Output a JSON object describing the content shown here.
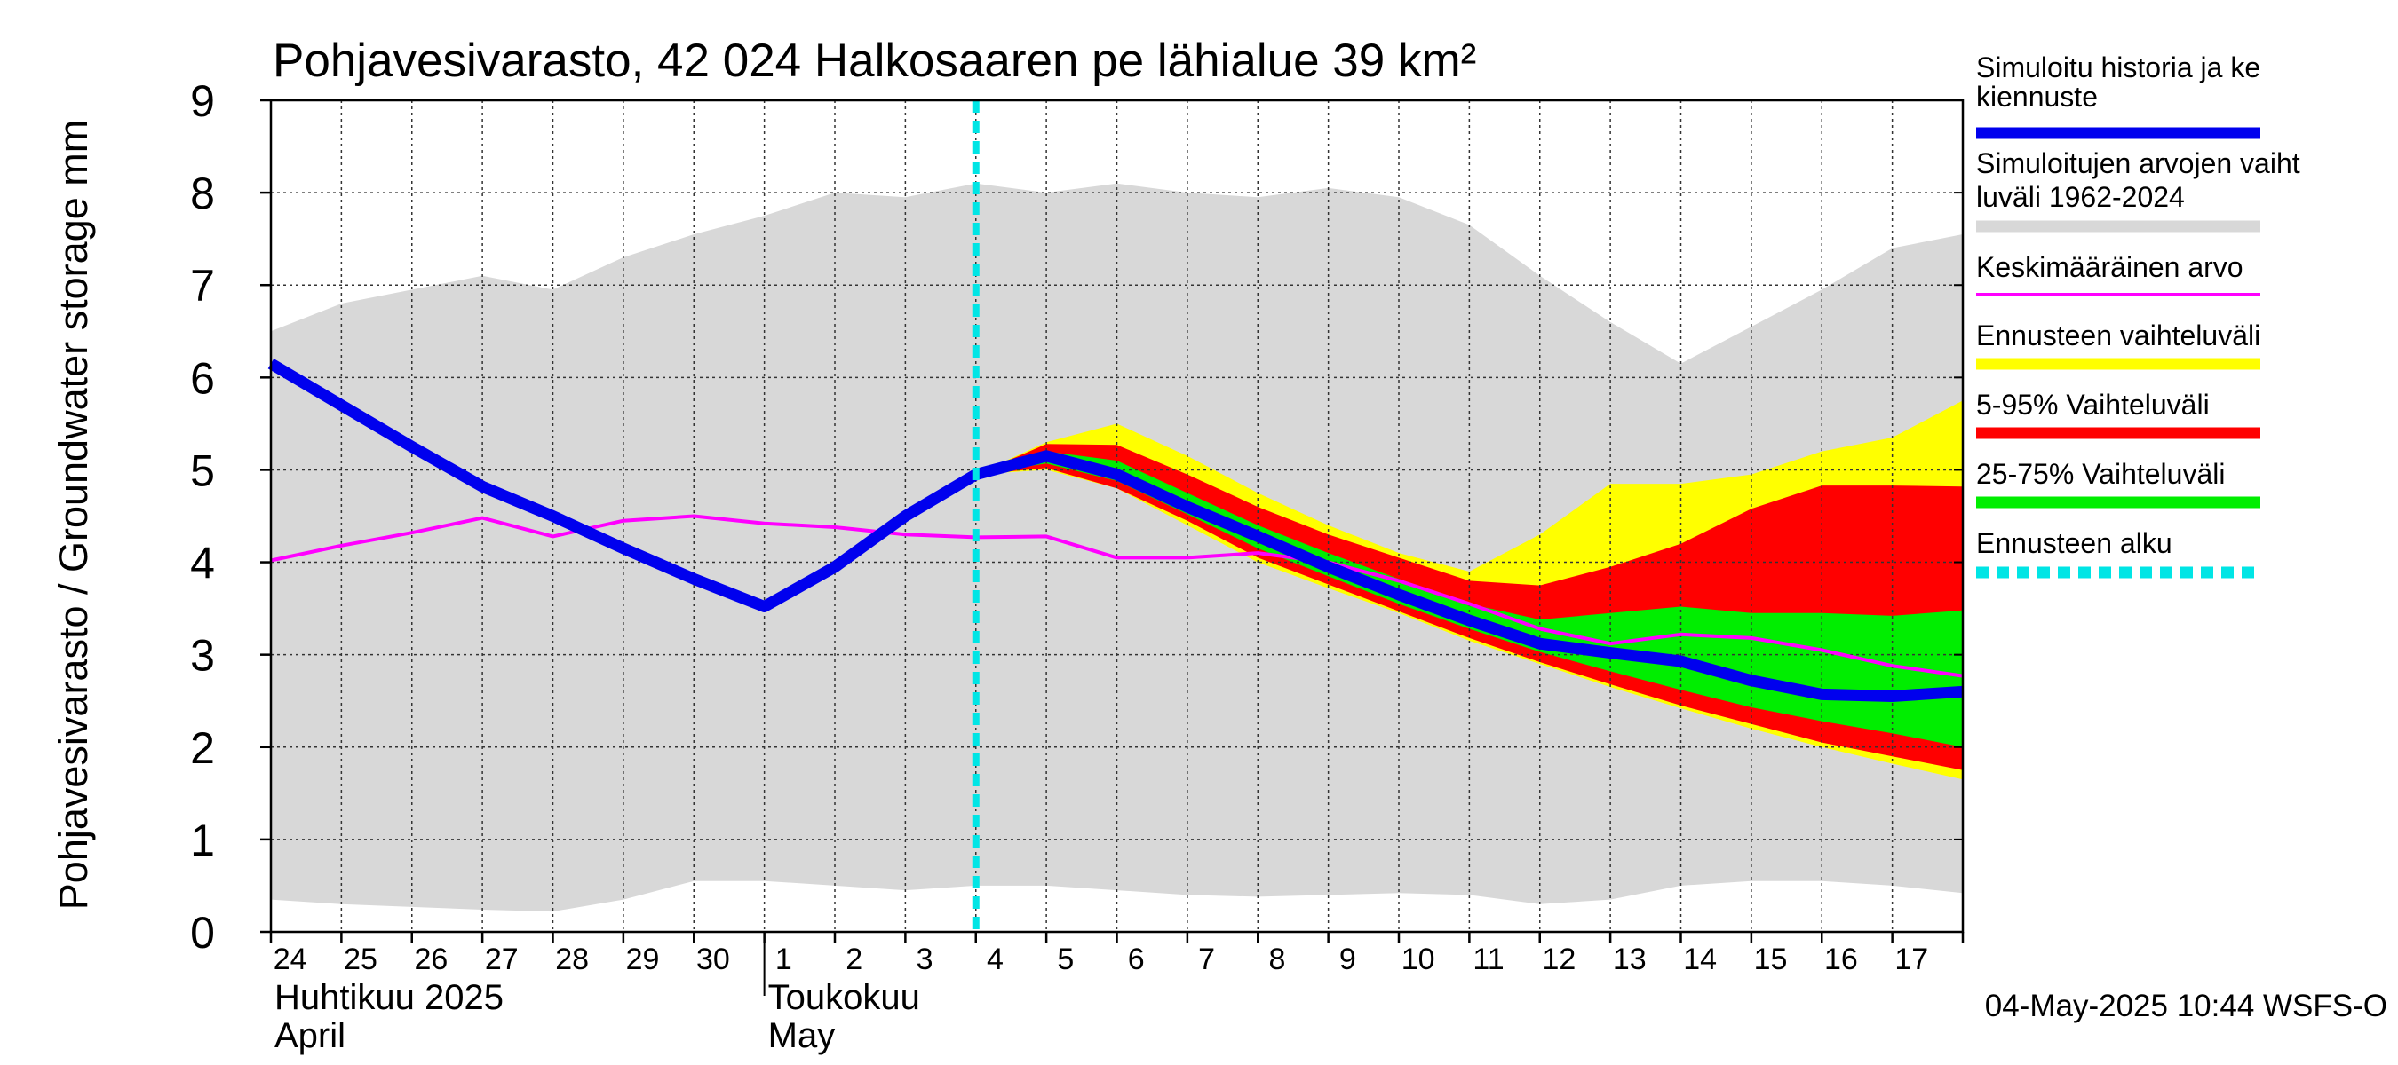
{
  "chart_data": {
    "type": "area",
    "title": "Pohjavesivarasto, 42 024 Halkosaaren pe lähialue 39 km²",
    "ylabel": "Pohjavesivarasto / Groundwater storage   mm",
    "ylim": [
      0,
      9
    ],
    "yticks": [
      "0",
      "1",
      "2",
      "3",
      "4",
      "5",
      "6",
      "7",
      "8",
      "9"
    ],
    "x_days": [
      0,
      1,
      2,
      3,
      4,
      5,
      6,
      7,
      8,
      9,
      10,
      11,
      12,
      13,
      14,
      15,
      16,
      17,
      18,
      19,
      20,
      21,
      22,
      23,
      24
    ],
    "x_tick_labels": [
      "24",
      "25",
      "26",
      "27",
      "28",
      "29",
      "30",
      "1",
      "2",
      "3",
      "4",
      "5",
      "6",
      "7",
      "8",
      "9",
      "10",
      "11",
      "12",
      "13",
      "14",
      "15",
      "16",
      "17"
    ],
    "month_labels": [
      {
        "fi": "Huhtikuu  2025",
        "en": "April",
        "start_day": 0
      },
      {
        "fi": "Toukokuu",
        "en": "May",
        "start_day": 7
      }
    ],
    "forecast_start_day": 10,
    "grid": true,
    "legend_position": "right",
    "series": [
      {
        "name": "Simuloitujen arvojen vaihteluväli 1962-2024",
        "color": "#d8d8d8",
        "kind": "band",
        "lower": [
          0.35,
          0.3,
          0.27,
          0.24,
          0.22,
          0.35,
          0.55,
          0.55,
          0.5,
          0.45,
          0.5,
          0.5,
          0.45,
          0.4,
          0.38,
          0.4,
          0.42,
          0.4,
          0.3,
          0.35,
          0.5,
          0.55,
          0.55,
          0.5,
          0.42
        ],
        "upper": [
          6.5,
          6.8,
          6.95,
          7.1,
          6.95,
          7.3,
          7.55,
          7.75,
          8.0,
          7.95,
          8.1,
          8.0,
          8.1,
          8.0,
          7.95,
          8.05,
          7.95,
          7.65,
          7.1,
          6.6,
          6.15,
          6.55,
          6.95,
          7.4,
          7.55
        ]
      },
      {
        "name": "Ennusteen vaihteluväli",
        "color": "#ffff00",
        "kind": "band",
        "start_day": 10,
        "lower": [
          4.95,
          5.0,
          4.8,
          4.4,
          4.0,
          3.72,
          3.45,
          3.15,
          2.9,
          2.65,
          2.42,
          2.2,
          2.0,
          1.82,
          1.65
        ],
        "upper": [
          4.95,
          5.3,
          5.5,
          5.15,
          4.75,
          4.4,
          4.1,
          3.9,
          4.3,
          4.85,
          4.85,
          4.95,
          5.2,
          5.35,
          5.75
        ]
      },
      {
        "name": "5-95% Vaihteluväli",
        "color": "#ff0000",
        "kind": "band",
        "start_day": 10,
        "lower": [
          4.95,
          5.02,
          4.8,
          4.45,
          4.05,
          3.76,
          3.47,
          3.18,
          2.92,
          2.68,
          2.45,
          2.25,
          2.05,
          1.9,
          1.75
        ],
        "upper": [
          4.95,
          5.28,
          5.27,
          4.95,
          4.6,
          4.3,
          4.05,
          3.8,
          3.75,
          3.95,
          4.2,
          4.58,
          4.83,
          4.83,
          4.82
        ]
      },
      {
        "name": "25-75% Vaihteluväli",
        "color": "#00ee00",
        "kind": "band",
        "start_day": 10,
        "lower": [
          4.95,
          5.07,
          4.88,
          4.52,
          4.15,
          3.85,
          3.55,
          3.28,
          3.03,
          2.82,
          2.62,
          2.43,
          2.28,
          2.15,
          2.0
        ],
        "upper": [
          4.95,
          5.2,
          5.1,
          4.75,
          4.4,
          4.1,
          3.82,
          3.55,
          3.38,
          3.45,
          3.52,
          3.45,
          3.45,
          3.42,
          3.48
        ]
      },
      {
        "name": "Keskimääräinen arvo",
        "color": "#ff00ff",
        "kind": "line",
        "values": [
          4.02,
          4.18,
          4.32,
          4.48,
          4.28,
          4.45,
          4.5,
          4.42,
          4.38,
          4.3,
          4.27,
          4.28,
          4.05,
          4.05,
          4.1,
          4.0,
          3.8,
          3.55,
          3.28,
          3.12,
          3.22,
          3.18,
          3.05,
          2.88,
          2.77
        ]
      },
      {
        "name": "Simuloitu historia ja keskiennuste",
        "color": "#0000ee",
        "kind": "line",
        "values": [
          6.15,
          5.7,
          5.25,
          4.82,
          4.5,
          4.15,
          3.82,
          3.52,
          3.95,
          4.5,
          4.95,
          5.15,
          4.95,
          4.6,
          4.28,
          3.95,
          3.65,
          3.37,
          3.12,
          3.02,
          2.93,
          2.72,
          2.57,
          2.55,
          2.6
        ]
      },
      {
        "name": "Ennusteen alku",
        "color": "#00e5e5",
        "kind": "vline",
        "day": 10
      }
    ],
    "legend": [
      {
        "label": "Simuloitu historia ja keskiennuste",
        "color": "#0000ee",
        "style": "thick"
      },
      {
        "label": "Simuloitujen arvojen vaihteluväli 1962-2024",
        "color": "#d8d8d8",
        "style": "thick"
      },
      {
        "label": "Keskimääräinen arvo",
        "color": "#ff00ff",
        "style": "thin"
      },
      {
        "label": "Ennusteen vaihteluväli",
        "color": "#ffff00",
        "style": "thick"
      },
      {
        "label": "5-95% Vaihteluväli",
        "color": "#ff0000",
        "style": "thick"
      },
      {
        "label": "25-75% Vaihteluväli",
        "color": "#00ee00",
        "style": "thick"
      },
      {
        "label": "Ennusteen alku",
        "color": "#00e5e5",
        "style": "dashed"
      }
    ],
    "footer": "04-May-2025 10:44 WSFS-O"
  }
}
